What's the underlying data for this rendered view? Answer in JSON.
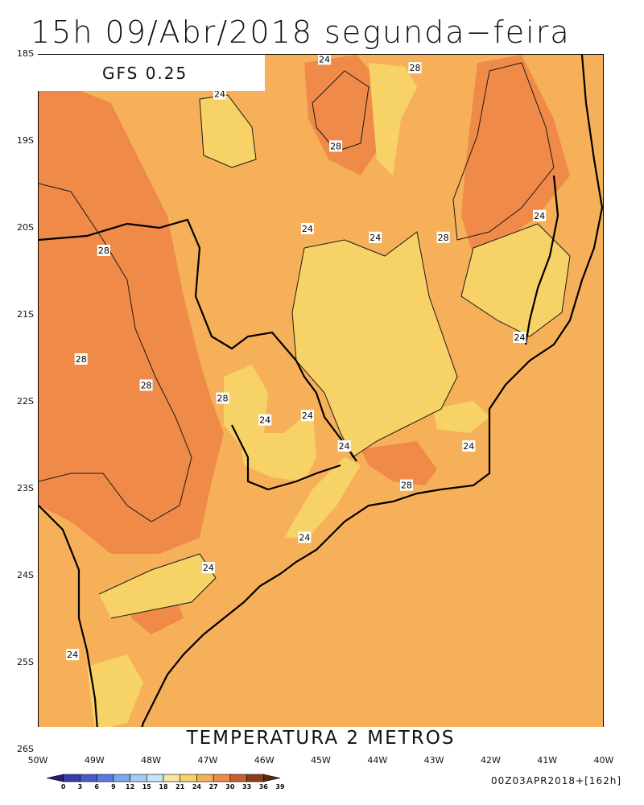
{
  "title": "15h 09/Abr/2018 segunda−feira",
  "model_label": "GFS 0.25",
  "field_label": "TEMPERATURA 2 METROS",
  "run_label": "00Z03APR2018+[162h]",
  "latitude_ticks": [
    "18S",
    "19S",
    "20S",
    "21S",
    "22S",
    "23S",
    "24S",
    "25S",
    "26S"
  ],
  "longitude_ticks": [
    "50W",
    "49W",
    "48W",
    "47W",
    "46W",
    "45W",
    "44W",
    "43W",
    "42W",
    "41W",
    "40W"
  ],
  "colorbar": {
    "ticks": [
      "0",
      "3",
      "6",
      "9",
      "12",
      "15",
      "18",
      "21",
      "24",
      "27",
      "30",
      "33",
      "36",
      "39"
    ],
    "colors": [
      "#2a1a7a",
      "#3a3aa8",
      "#4a5ac8",
      "#5a7ae0",
      "#7ea6ec",
      "#a6cbf2",
      "#c7e3f6",
      "#f5e6a0",
      "#f6d267",
      "#f7b05a",
      "#f08a48",
      "#c4612e",
      "#8a3e18",
      "#5a2508"
    ]
  },
  "colors": {
    "fill_24_27": "#f7b05a",
    "fill_21_24": "#f6d267",
    "fill_27_30": "#f08a48"
  },
  "contour_labels": [
    {
      "text": "24",
      "lon": -44.95,
      "lat": -18.05
    },
    {
      "text": "28",
      "lon": -43.35,
      "lat": -18.15
    },
    {
      "text": "24",
      "lon": -46.8,
      "lat": -18.45
    },
    {
      "text": "28",
      "lon": -44.75,
      "lat": -19.05
    },
    {
      "text": "24",
      "lon": -41.15,
      "lat": -19.85
    },
    {
      "text": "24",
      "lon": -45.25,
      "lat": -20.0
    },
    {
      "text": "24",
      "lon": -44.05,
      "lat": -20.1
    },
    {
      "text": "28",
      "lon": -42.85,
      "lat": -20.1
    },
    {
      "text": "28",
      "lon": -48.85,
      "lat": -20.25
    },
    {
      "text": "24",
      "lon": -41.5,
      "lat": -21.25
    },
    {
      "text": "28",
      "lon": -49.25,
      "lat": -21.5
    },
    {
      "text": "28",
      "lon": -48.1,
      "lat": -21.8
    },
    {
      "text": "28",
      "lon": -46.75,
      "lat": -21.95
    },
    {
      "text": "24",
      "lon": -45.25,
      "lat": -22.15
    },
    {
      "text": "24",
      "lon": -46.0,
      "lat": -22.2
    },
    {
      "text": "24",
      "lon": -44.6,
      "lat": -22.5
    },
    {
      "text": "24",
      "lon": -42.4,
      "lat": -22.5
    },
    {
      "text": "28",
      "lon": -43.5,
      "lat": -22.95
    },
    {
      "text": "24",
      "lon": -45.3,
      "lat": -23.55
    },
    {
      "text": "24",
      "lon": -47.0,
      "lat": -23.9
    },
    {
      "text": "24",
      "lon": -49.4,
      "lat": -24.9
    }
  ]
}
